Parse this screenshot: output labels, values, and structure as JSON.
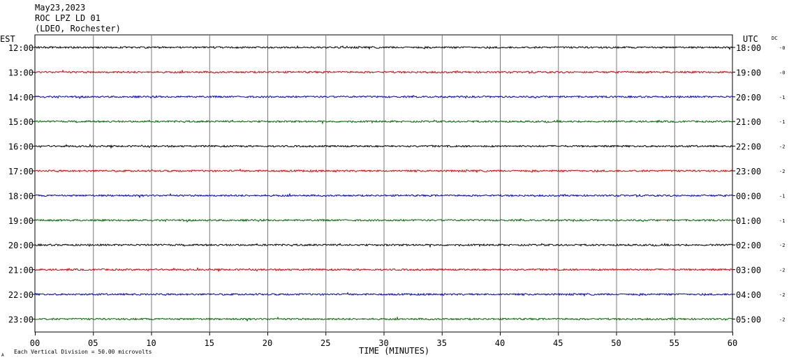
{
  "header": {
    "date": "May23,2023",
    "station": "ROC LPZ LD 01",
    "network": "(LDEO, Rochester)"
  },
  "labels": {
    "left_tz": "EST",
    "right_tz": "UTC",
    "dc": "DC",
    "x_axis": "TIME (MINUTES)",
    "scale_note": "Each Vertical Division =   50.00 microvolts",
    "corner_mark": "A"
  },
  "chart_data": {
    "type": "line",
    "title": "May23,2023",
    "xlabel": "TIME (MINUTES)",
    "xlim": [
      0,
      60
    ],
    "x_ticks": [
      "00",
      "05",
      "10",
      "15",
      "20",
      "25",
      "30",
      "35",
      "40",
      "45",
      "50",
      "55",
      "60"
    ],
    "grid": true,
    "trace_colors": [
      "#000000",
      "#dd0000",
      "#0000cc",
      "#006600"
    ],
    "rows": [
      {
        "est": "12:00",
        "utc": "18:00",
        "dc": "-0"
      },
      {
        "est": "13:00",
        "utc": "19:00",
        "dc": "-0"
      },
      {
        "est": "14:00",
        "utc": "20:00",
        "dc": "-1"
      },
      {
        "est": "15:00",
        "utc": "21:00",
        "dc": "-1"
      },
      {
        "est": "16:00",
        "utc": "22:00",
        "dc": "-2"
      },
      {
        "est": "17:00",
        "utc": "23:00",
        "dc": "-2"
      },
      {
        "est": "18:00",
        "utc": "00:00",
        "dc": "-1"
      },
      {
        "est": "19:00",
        "utc": "01:00",
        "dc": "-1"
      },
      {
        "est": "20:00",
        "utc": "02:00",
        "dc": "-2"
      },
      {
        "est": "21:00",
        "utc": "03:00",
        "dc": "-2"
      },
      {
        "est": "22:00",
        "utc": "04:00",
        "dc": "-2"
      },
      {
        "est": "23:00",
        "utc": "05:00",
        "dc": "-2"
      }
    ]
  }
}
